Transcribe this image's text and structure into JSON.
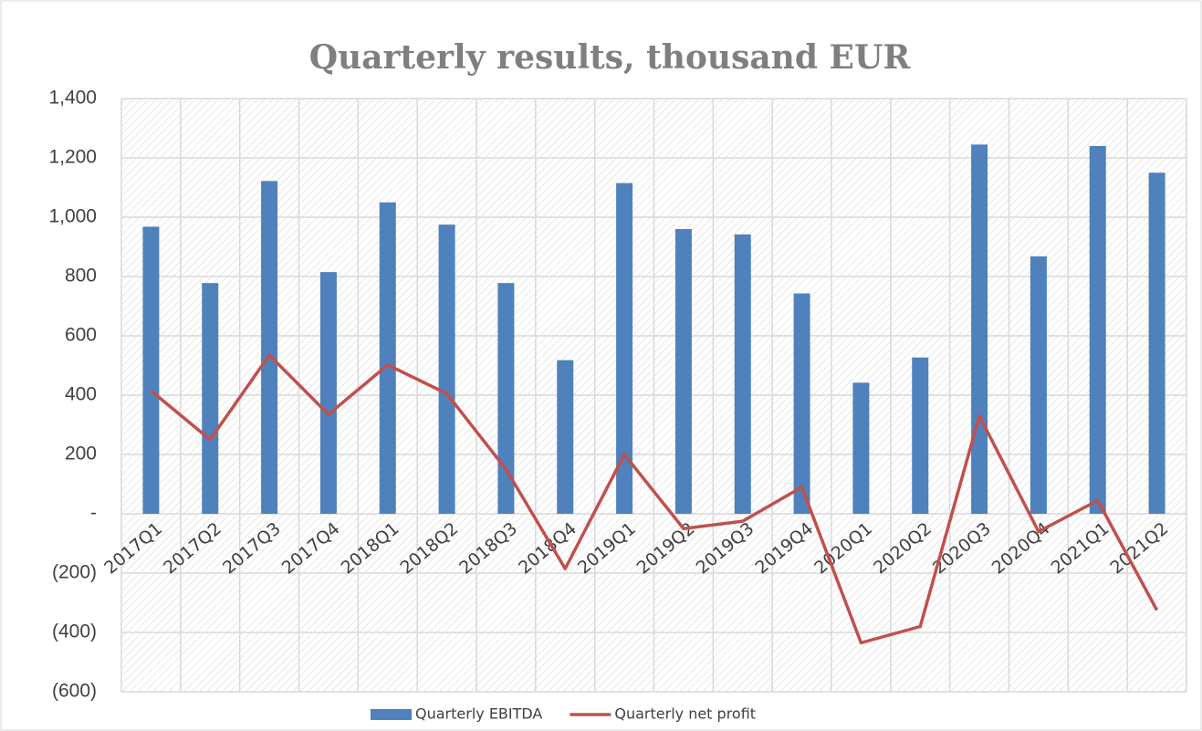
{
  "chart_data": {
    "type": "bar_line",
    "title": "Quarterly results, thousand EUR",
    "categories": [
      "2017Q1",
      "2017Q2",
      "2017Q3",
      "2017Q4",
      "2018Q1",
      "2018Q2",
      "2018Q3",
      "2018Q4",
      "2019Q1",
      "2019Q2",
      "2019Q3",
      "2019Q4",
      "2020Q1",
      "2020Q2",
      "2020Q3",
      "2020Q4",
      "2021Q1",
      "2021Q2"
    ],
    "series": [
      {
        "name": "Quarterly EBITDA",
        "type": "bar",
        "color": "#4f81bd",
        "values": [
          968,
          778,
          1122,
          815,
          1050,
          975,
          778,
          518,
          1115,
          960,
          942,
          743,
          442,
          527,
          1245,
          868,
          1240,
          1150
        ]
      },
      {
        "name": "Quarterly net profit",
        "type": "line",
        "color": "#c0504d",
        "values": [
          415,
          250,
          535,
          335,
          502,
          405,
          150,
          -185,
          200,
          -50,
          -25,
          90,
          -435,
          -380,
          330,
          -60,
          45,
          -325
        ]
      }
    ],
    "ylim": [
      -600,
      1400
    ],
    "yticks": [
      {
        "value": 1400,
        "label": "1,400"
      },
      {
        "value": 1200,
        "label": "1,200"
      },
      {
        "value": 1000,
        "label": "1,000"
      },
      800,
      600,
      400,
      200,
      {
        "value": 0,
        "label": "-"
      },
      {
        "value": -200,
        "label": "(200)"
      },
      {
        "value": -400,
        "label": "(400)"
      },
      {
        "value": -600,
        "label": "(600)"
      }
    ],
    "grid": true,
    "legend": "bottom"
  }
}
